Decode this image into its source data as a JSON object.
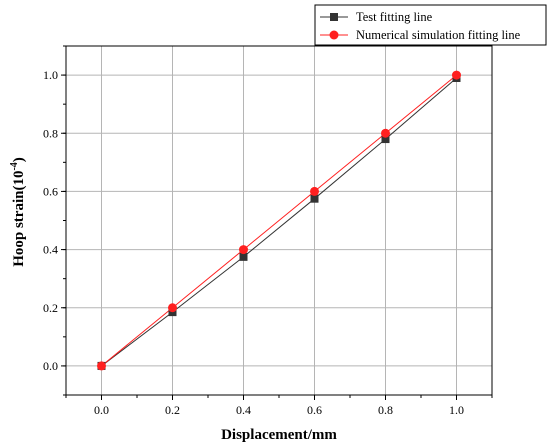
{
  "chart_data": {
    "type": "line",
    "xlabel": "Displacement/mm",
    "ylabel_main": "Hoop strain(10",
    "ylabel_exp": "-4",
    "ylabel_close": ")",
    "xlim": [
      -0.1,
      1.1
    ],
    "ylim": [
      -0.1,
      1.1
    ],
    "grid": true,
    "legend_position": "top-right",
    "x_ticks": [
      "0.0",
      "0.2",
      "0.4",
      "0.6",
      "0.8",
      "1.0"
    ],
    "y_ticks": [
      "0.0",
      "0.2",
      "0.4",
      "0.6",
      "0.8",
      "1.0"
    ],
    "series": [
      {
        "name": "Test fitting line",
        "color": "#333333",
        "marker": "square",
        "x": [
          0.0,
          0.2,
          0.4,
          0.6,
          0.8,
          1.0
        ],
        "y": [
          0.0,
          0.185,
          0.375,
          0.575,
          0.78,
          0.99
        ]
      },
      {
        "name": "Numerical simulation fitting line",
        "color": "#ff2020",
        "marker": "circle",
        "x": [
          0.0,
          0.2,
          0.4,
          0.6,
          0.8,
          1.0
        ],
        "y": [
          0.0,
          0.2,
          0.4,
          0.6,
          0.8,
          1.0
        ]
      }
    ]
  }
}
